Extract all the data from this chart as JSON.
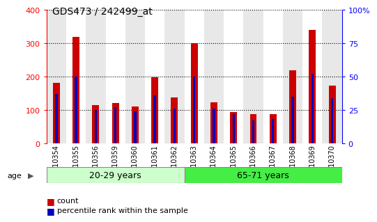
{
  "title": "GDS473 / 242499_at",
  "samples": [
    "GSM10354",
    "GSM10355",
    "GSM10356",
    "GSM10359",
    "GSM10360",
    "GSM10361",
    "GSM10362",
    "GSM10363",
    "GSM10364",
    "GSM10365",
    "GSM10366",
    "GSM10367",
    "GSM10368",
    "GSM10369",
    "GSM10370"
  ],
  "counts": [
    182,
    320,
    115,
    122,
    110,
    198,
    137,
    300,
    123,
    93,
    87,
    87,
    220,
    340,
    173
  ],
  "percentiles": [
    37,
    50,
    25,
    27,
    24,
    36,
    26,
    50,
    26,
    22,
    17,
    18,
    35,
    52,
    34
  ],
  "group1_label": "20-29 years",
  "group2_label": "65-71 years",
  "group1_count": 7,
  "group2_count": 8,
  "ylim_left": [
    0,
    400
  ],
  "ylim_right": [
    0,
    100
  ],
  "yticks_left": [
    0,
    100,
    200,
    300,
    400
  ],
  "yticks_right": [
    0,
    25,
    50,
    75,
    100
  ],
  "bar_color": "#cc0000",
  "percentile_color": "#0000bb",
  "col_bg_odd": "#e8e8e8",
  "col_bg_even": "#ffffff",
  "plot_bg": "#ffffff",
  "group1_bg": "#ccffcc",
  "group2_bg": "#44ee44",
  "legend_count_label": "count",
  "legend_pct_label": "percentile rank within the sample",
  "age_label": "age",
  "bar_width": 0.35,
  "pct_bar_width": 0.12
}
